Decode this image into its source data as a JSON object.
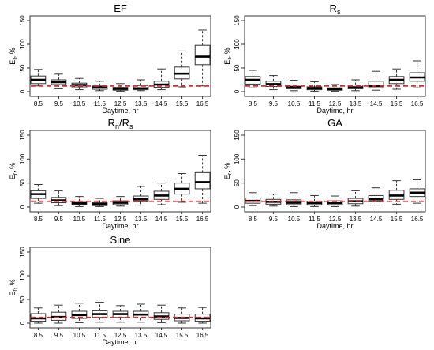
{
  "chart_data": [
    {
      "type": "box",
      "title": "EF",
      "title_sub": "",
      "xlabel": "Daytime, hr",
      "ylabel": "E",
      "ylabel_sub": "r",
      "ylabel_unit": ", %",
      "ylim": [
        0,
        150
      ],
      "yticks": [
        0,
        50,
        100,
        150
      ],
      "categories": [
        "8.5",
        "9.5",
        "10.5",
        "11.5",
        "12.5",
        "13.5",
        "14.5",
        "15.5",
        "16.5"
      ],
      "reference_line": {
        "value": 12,
        "color": "#d32f2f",
        "style": "dashed"
      },
      "boxes": [
        {
          "min": 12,
          "q1": 17,
          "median": 25,
          "q3": 33,
          "max": 47
        },
        {
          "min": 6,
          "q1": 15,
          "median": 20,
          "q3": 25,
          "max": 37
        },
        {
          "min": 4,
          "q1": 10,
          "median": 14,
          "q3": 18,
          "max": 28
        },
        {
          "min": 2,
          "q1": 5,
          "median": 9,
          "q3": 12,
          "max": 22
        },
        {
          "min": 1,
          "q1": 3,
          "median": 6,
          "q3": 9,
          "max": 17
        },
        {
          "min": 2,
          "q1": 4,
          "median": 7,
          "q3": 13,
          "max": 25
        },
        {
          "min": 4,
          "q1": 9,
          "median": 15,
          "q3": 22,
          "max": 48
        },
        {
          "min": 10,
          "q1": 27,
          "median": 38,
          "q3": 52,
          "max": 86
        },
        {
          "min": 12,
          "q1": 57,
          "median": 74,
          "q3": 98,
          "max": 130
        }
      ]
    },
    {
      "type": "box",
      "title": "R",
      "title_sub": "s",
      "xlabel": "Daytime, hr",
      "ylabel": "E",
      "ylabel_sub": "r",
      "ylabel_unit": ", %",
      "ylim": [
        0,
        150
      ],
      "yticks": [
        0,
        50,
        100,
        150
      ],
      "categories": [
        "8.5",
        "9.5",
        "10.5",
        "11.5",
        "12.5",
        "13.5",
        "14.5",
        "15.5",
        "16.5"
      ],
      "reference_line": {
        "value": 12,
        "color": "#d32f2f",
        "style": "dashed"
      },
      "boxes": [
        {
          "min": 8,
          "q1": 16,
          "median": 25,
          "q3": 32,
          "max": 45
        },
        {
          "min": 4,
          "q1": 11,
          "median": 16,
          "q3": 22,
          "max": 34
        },
        {
          "min": 2,
          "q1": 6,
          "median": 10,
          "q3": 14,
          "max": 24
        },
        {
          "min": 1,
          "q1": 4,
          "median": 7,
          "q3": 10,
          "max": 21
        },
        {
          "min": 1,
          "q1": 3,
          "median": 5,
          "q3": 8,
          "max": 15
        },
        {
          "min": 2,
          "q1": 6,
          "median": 9,
          "q3": 14,
          "max": 25
        },
        {
          "min": 3,
          "q1": 8,
          "median": 12,
          "q3": 22,
          "max": 43
        },
        {
          "min": 5,
          "q1": 17,
          "median": 25,
          "q3": 32,
          "max": 48
        },
        {
          "min": 8,
          "q1": 22,
          "median": 30,
          "q3": 40,
          "max": 65
        }
      ]
    },
    {
      "type": "box",
      "title": "R",
      "title_sub": "n",
      "title_suffix": "/R",
      "title_suffix_sub": "s",
      "xlabel": "Daytime, hr",
      "ylabel": "E",
      "ylabel_sub": "r",
      "ylabel_unit": ", %",
      "ylim": [
        0,
        150
      ],
      "yticks": [
        0,
        50,
        100,
        150
      ],
      "categories": [
        "8.5",
        "9.5",
        "10.5",
        "11.5",
        "12.5",
        "13.5",
        "14.5",
        "15.5",
        "16.5"
      ],
      "reference_line": {
        "value": 12,
        "color": "#d32f2f",
        "style": "dashed"
      },
      "boxes": [
        {
          "min": 8,
          "q1": 18,
          "median": 27,
          "q3": 34,
          "max": 47
        },
        {
          "min": 3,
          "q1": 9,
          "median": 14,
          "q3": 20,
          "max": 34
        },
        {
          "min": 1,
          "q1": 5,
          "median": 8,
          "q3": 12,
          "max": 22
        },
        {
          "min": 1,
          "q1": 3,
          "median": 6,
          "q3": 9,
          "max": 18
        },
        {
          "min": 2,
          "q1": 5,
          "median": 9,
          "q3": 13,
          "max": 22
        },
        {
          "min": 4,
          "q1": 11,
          "median": 16,
          "q3": 23,
          "max": 43
        },
        {
          "min": 5,
          "q1": 16,
          "median": 24,
          "q3": 33,
          "max": 50
        },
        {
          "min": 10,
          "q1": 27,
          "median": 38,
          "q3": 50,
          "max": 70
        },
        {
          "min": 8,
          "q1": 38,
          "median": 52,
          "q3": 72,
          "max": 108
        }
      ]
    },
    {
      "type": "box",
      "title": "GA",
      "title_sub": "",
      "xlabel": "Daytime, hr",
      "ylabel": "E",
      "ylabel_sub": "r",
      "ylabel_unit": ", %",
      "ylim": [
        0,
        150
      ],
      "yticks": [
        0,
        50,
        100,
        150
      ],
      "categories": [
        "8.5",
        "9.5",
        "10.5",
        "11.5",
        "12.5",
        "13.5",
        "14.5",
        "15.5",
        "16.5"
      ],
      "reference_line": {
        "value": 12,
        "color": "#d32f2f",
        "style": "dashed"
      },
      "boxes": [
        {
          "min": 3,
          "q1": 8,
          "median": 13,
          "q3": 19,
          "max": 30
        },
        {
          "min": 2,
          "q1": 6,
          "median": 11,
          "q3": 16,
          "max": 27
        },
        {
          "min": 1,
          "q1": 5,
          "median": 9,
          "q3": 15,
          "max": 30
        },
        {
          "min": 1,
          "q1": 4,
          "median": 8,
          "q3": 12,
          "max": 24
        },
        {
          "min": 1,
          "q1": 4,
          "median": 8,
          "q3": 13,
          "max": 23
        },
        {
          "min": 2,
          "q1": 7,
          "median": 12,
          "q3": 18,
          "max": 34
        },
        {
          "min": 4,
          "q1": 11,
          "median": 16,
          "q3": 24,
          "max": 40
        },
        {
          "min": 6,
          "q1": 16,
          "median": 24,
          "q3": 35,
          "max": 55
        },
        {
          "min": 8,
          "q1": 22,
          "median": 30,
          "q3": 38,
          "max": 57
        }
      ]
    },
    {
      "type": "box",
      "title": "Sine",
      "title_sub": "",
      "xlabel": "Daytime, hr",
      "ylabel": "E",
      "ylabel_sub": "r",
      "ylabel_unit": ", %",
      "ylim": [
        0,
        150
      ],
      "yticks": [
        0,
        50,
        100,
        150
      ],
      "categories": [
        "8.5",
        "9.5",
        "10.5",
        "11.5",
        "12.5",
        "13.5",
        "14.5",
        "15.5",
        "16.5"
      ],
      "reference_line": {
        "value": 12,
        "color": "#d32f2f",
        "style": "dashed"
      },
      "boxes": [
        {
          "min": 0,
          "q1": 4,
          "median": 10,
          "q3": 20,
          "max": 32
        },
        {
          "min": 0,
          "q1": 6,
          "median": 13,
          "q3": 23,
          "max": 38
        },
        {
          "min": 1,
          "q1": 10,
          "median": 17,
          "q3": 25,
          "max": 42
        },
        {
          "min": 2,
          "q1": 12,
          "median": 19,
          "q3": 26,
          "max": 44
        },
        {
          "min": 2,
          "q1": 12,
          "median": 19,
          "q3": 25,
          "max": 37
        },
        {
          "min": 2,
          "q1": 11,
          "median": 18,
          "q3": 25,
          "max": 40
        },
        {
          "min": 1,
          "q1": 8,
          "median": 14,
          "q3": 22,
          "max": 38
        },
        {
          "min": 0,
          "q1": 5,
          "median": 11,
          "q3": 19,
          "max": 32
        },
        {
          "min": 0,
          "q1": 4,
          "median": 10,
          "q3": 19,
          "max": 33
        }
      ]
    }
  ]
}
